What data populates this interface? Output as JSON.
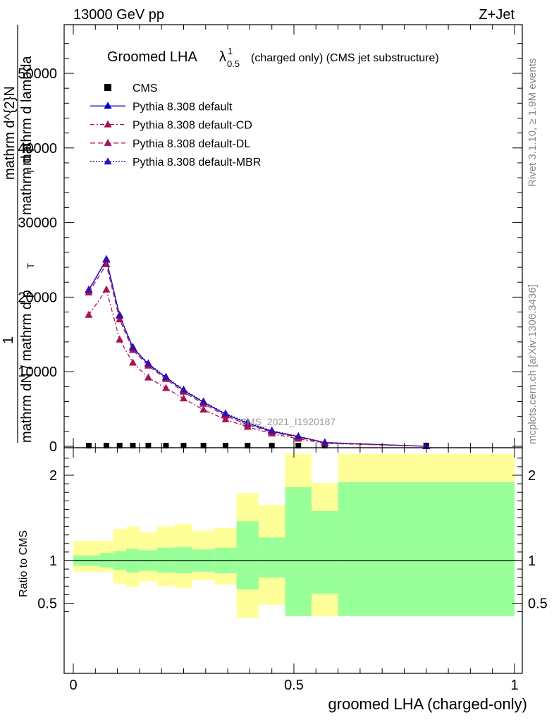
{
  "header": {
    "left": "13000 GeV pp",
    "right": "Z+Jet"
  },
  "side_labels": {
    "rivet": "Rivet 3.1.10, ≥ 1.9M events",
    "mcplots": "mcplots.cern.ch [arXiv:1306.3436]"
  },
  "chart_data": [
    {
      "type": "line",
      "title": "Groomed LHA",
      "title_symbol": "λ",
      "title_sup": "1",
      "title_sub": "0.5",
      "title_suffix": "(charged only) (CMS jet substructure)",
      "watermark": "CMS_2021_I1920187",
      "ylabel_parts": [
        "1",
        "mathrm dN / mathrm d p",
        "T",
        "mathrm d^{2}N",
        "mathrm d p",
        "T",
        "mathrm d lambda"
      ],
      "xlim": [
        0,
        1
      ],
      "ylim": [
        0,
        56000
      ],
      "yticks": [
        0,
        10000,
        20000,
        30000,
        40000,
        50000
      ],
      "ytick_labels": [
        "0",
        "10000",
        "20000",
        "30000",
        "40000",
        "50000"
      ],
      "x": [
        0.035,
        0.075,
        0.105,
        0.135,
        0.17,
        0.21,
        0.25,
        0.295,
        0.345,
        0.395,
        0.45,
        0.51,
        0.57,
        0.8
      ],
      "series": [
        {
          "name": "CMS",
          "color": "#000000",
          "marker": "square",
          "values": [
            0,
            0,
            0,
            0,
            0,
            0,
            0,
            0,
            0,
            0,
            0,
            0,
            0,
            0
          ]
        },
        {
          "name": "Pythia 8.308 default",
          "color": "#0000cc",
          "dash": "solid",
          "marker": "triangle",
          "values": [
            20900,
            25000,
            17500,
            13200,
            11000,
            9200,
            7500,
            5900,
            4300,
            3100,
            2000,
            1300,
            500,
            0
          ]
        },
        {
          "name": "Pythia 8.308 default-CD",
          "color": "#aa1155",
          "dash": "dashdot",
          "marker": "triangle",
          "values": [
            17600,
            21000,
            14300,
            11200,
            9200,
            7800,
            6400,
            4900,
            3600,
            2600,
            1700,
            1000,
            400,
            0
          ]
        },
        {
          "name": "Pythia 8.308 default-DL",
          "color": "#aa1155",
          "dash": "dashed",
          "marker": "triangle",
          "values": [
            20600,
            24400,
            17000,
            12900,
            10800,
            9000,
            7300,
            5700,
            4100,
            2900,
            1900,
            1200,
            450,
            0
          ]
        },
        {
          "name": "Pythia 8.308 default-MBR",
          "color": "#3311aa",
          "dash": "dotted",
          "marker": "triangle",
          "values": [
            21000,
            25100,
            17600,
            13300,
            11100,
            9300,
            7600,
            6000,
            4400,
            3200,
            2100,
            1350,
            520,
            0
          ]
        }
      ],
      "legend_position": "top-left"
    },
    {
      "type": "area",
      "ylabel": "Ratio to CMS",
      "xlabel": "groomed LHA (charged-only)",
      "xlim": [
        0,
        1
      ],
      "ylim": [
        0.35,
        2.25
      ],
      "xticks": [
        0,
        0.5,
        1
      ],
      "xtick_labels": [
        "0",
        "0.5",
        "1"
      ],
      "yticks": [
        0.5,
        1,
        2
      ],
      "ytick_labels": [
        "0.5",
        "1",
        "2"
      ],
      "reference_line": 1,
      "bins": [
        {
          "lo": 0.0,
          "hi": 0.06,
          "y_lo": 0.87,
          "y_hi": 1.23,
          "g_lo": 0.94,
          "g_hi": 1.06
        },
        {
          "lo": 0.06,
          "hi": 0.09,
          "y_lo": 0.87,
          "y_hi": 1.23,
          "g_lo": 0.92,
          "g_hi": 1.09
        },
        {
          "lo": 0.09,
          "hi": 0.12,
          "y_lo": 0.73,
          "y_hi": 1.37,
          "g_lo": 0.89,
          "g_hi": 1.11
        },
        {
          "lo": 0.12,
          "hi": 0.15,
          "y_lo": 0.69,
          "y_hi": 1.4,
          "g_lo": 0.86,
          "g_hi": 1.14
        },
        {
          "lo": 0.15,
          "hi": 0.19,
          "y_lo": 0.76,
          "y_hi": 1.33,
          "g_lo": 0.88,
          "g_hi": 1.12
        },
        {
          "lo": 0.19,
          "hi": 0.23,
          "y_lo": 0.7,
          "y_hi": 1.4,
          "g_lo": 0.86,
          "g_hi": 1.15
        },
        {
          "lo": 0.23,
          "hi": 0.27,
          "y_lo": 0.68,
          "y_hi": 1.43,
          "g_lo": 0.85,
          "g_hi": 1.16
        },
        {
          "lo": 0.27,
          "hi": 0.32,
          "y_lo": 0.77,
          "y_hi": 1.35,
          "g_lo": 0.87,
          "g_hi": 1.13
        },
        {
          "lo": 0.32,
          "hi": 0.37,
          "y_lo": 0.72,
          "y_hi": 1.38,
          "g_lo": 0.85,
          "g_hi": 1.15
        },
        {
          "lo": 0.37,
          "hi": 0.42,
          "y_lo": 0.33,
          "y_hi": 1.79,
          "g_lo": 0.66,
          "g_hi": 1.46
        },
        {
          "lo": 0.42,
          "hi": 0.48,
          "y_lo": 0.48,
          "y_hi": 1.65,
          "g_lo": 0.8,
          "g_hi": 1.27
        },
        {
          "lo": 0.48,
          "hi": 0.54,
          "y_lo": 0.35,
          "y_hi": 2.25,
          "g_lo": 0.35,
          "g_hi": 1.86
        },
        {
          "lo": 0.54,
          "hi": 0.6,
          "y_lo": 0.35,
          "y_hi": 1.91,
          "g_lo": 0.61,
          "g_hi": 1.58
        },
        {
          "lo": 0.6,
          "hi": 1.0,
          "y_lo": 0.35,
          "y_hi": 2.25,
          "g_lo": 0.35,
          "g_hi": 1.92
        }
      ],
      "band_colors": {
        "outer": "#ffff99",
        "inner": "#99ff99"
      }
    }
  ]
}
